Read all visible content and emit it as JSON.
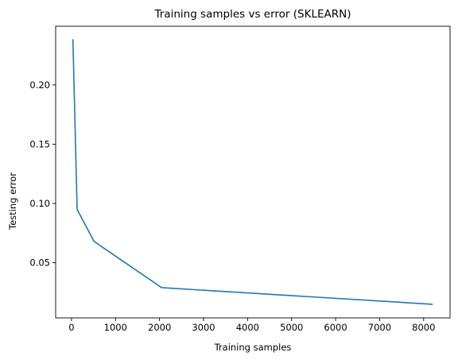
{
  "chart_data": {
    "type": "line",
    "title": "Training samples vs error (SKLEARN)",
    "xlabel": "Training samples",
    "ylabel": "Testing error",
    "grid": false,
    "legend": "none",
    "line_color": "#1f77b4",
    "xlim": [
      -360,
      8600
    ],
    "ylim": [
      0.0035,
      0.2495
    ],
    "xticks": [
      0,
      1000,
      2000,
      3000,
      4000,
      5000,
      6000,
      7000,
      8000
    ],
    "xtick_labels": [
      "0",
      "1000",
      "2000",
      "3000",
      "4000",
      "5000",
      "6000",
      "7000",
      "8000"
    ],
    "yticks": [
      0.05,
      0.1,
      0.15,
      0.2
    ],
    "ytick_labels": [
      "0.05",
      "0.10",
      "0.15",
      "0.20"
    ],
    "series": [
      {
        "x": [
          32,
          128,
          512,
          2048,
          8192
        ],
        "y": [
          0.238,
          0.095,
          0.068,
          0.029,
          0.015
        ]
      }
    ]
  }
}
